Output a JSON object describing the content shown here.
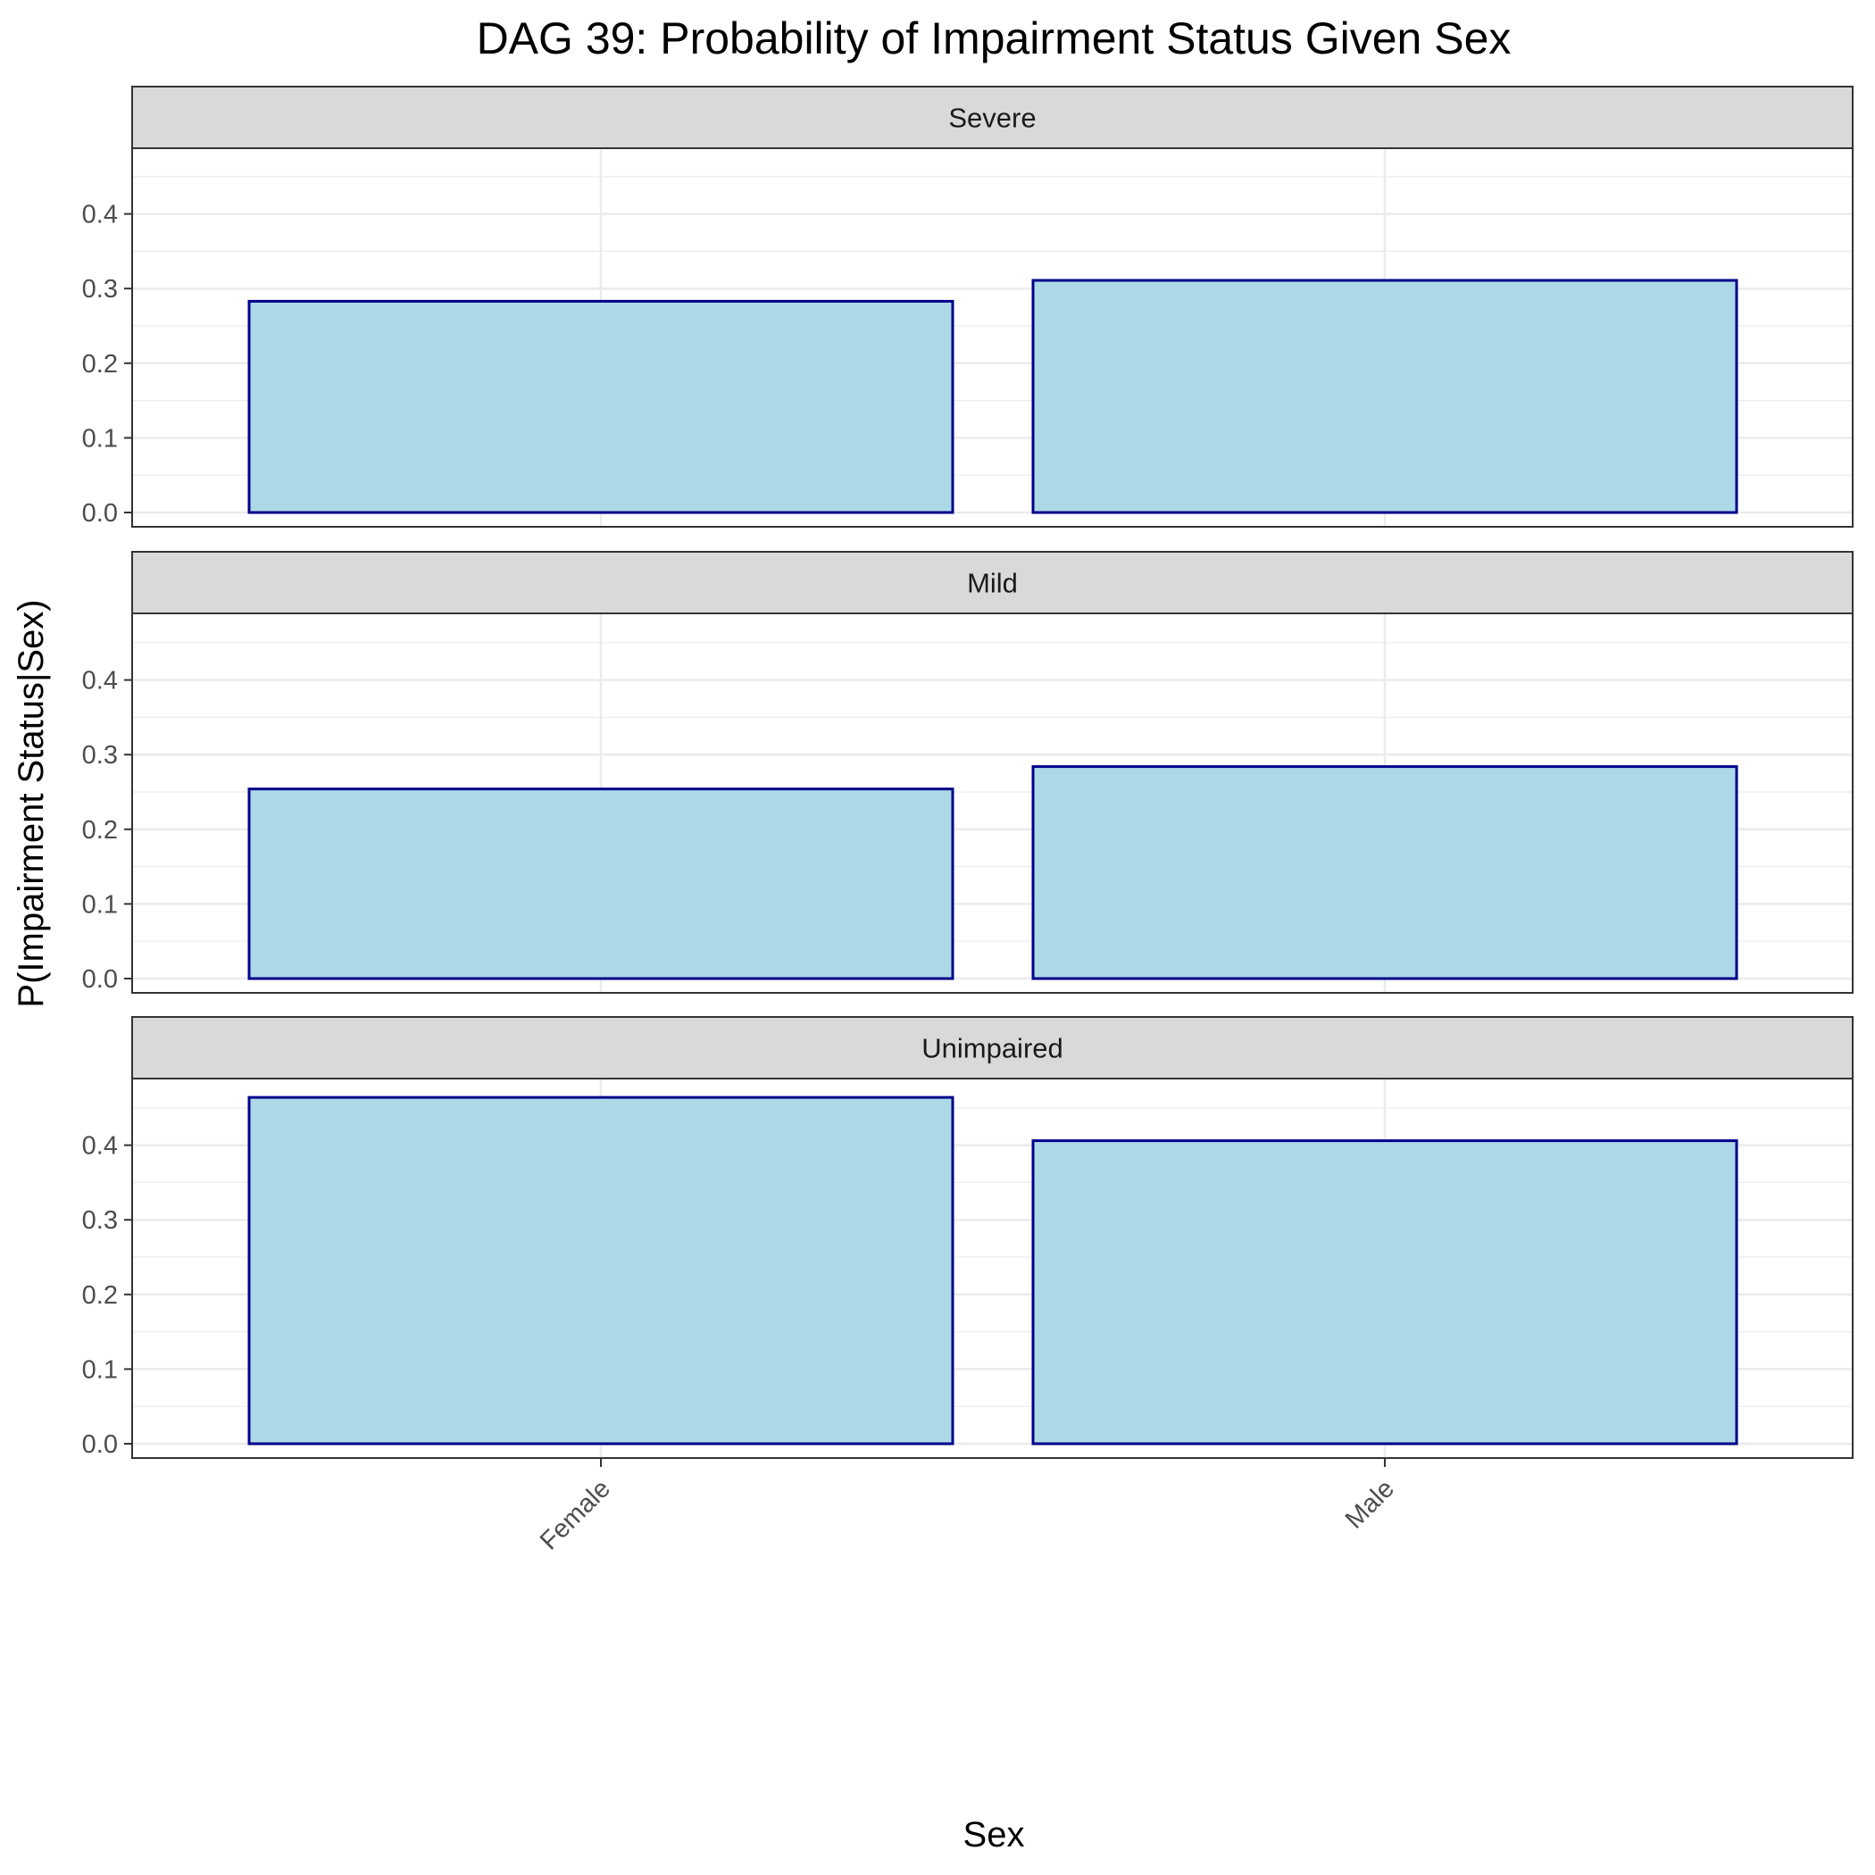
{
  "chart_data": {
    "type": "bar",
    "title": "DAG 39: Probability of Impairment Status Given Sex",
    "xlabel": "Sex",
    "ylabel": "P(Impairment Status|Sex)",
    "categories": [
      "Female",
      "Male"
    ],
    "ylim": [
      0,
      0.48
    ],
    "yticks": [
      "0.0",
      "0.1",
      "0.2",
      "0.3",
      "0.4"
    ],
    "grid": true,
    "colors": {
      "bar_fill": "#add8e6",
      "bar_stroke": "#00008b",
      "strip_fill": "#d9d9d9",
      "panel_border": "#333333",
      "grid": "#ebebeb"
    },
    "facets": [
      {
        "label": "Severe",
        "values": [
          0.283,
          0.311
        ]
      },
      {
        "label": "Mild",
        "values": [
          0.254,
          0.284
        ]
      },
      {
        "label": "Unimpaired",
        "values": [
          0.464,
          0.406
        ]
      }
    ]
  }
}
